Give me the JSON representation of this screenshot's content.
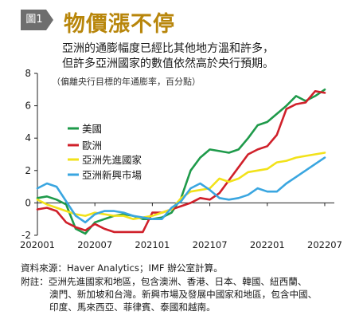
{
  "figure_label": "圖1",
  "title": "物價漲不停",
  "subtitle_lines": [
    "亞洲的通膨幅度已經比其他地方溫和許多，",
    "但許多亞洲國家的數值依然高於央行預期。"
  ],
  "source": "資料來源：Haver Analytics；IMF 辦公室計算。",
  "notes": [
    "附註：亞洲先進國家和地區，包含澳洲、香港、日本、韓國、紐西蘭、",
    "澳門、新加坡和台灣。新興市場及發展中國家和地區，包含中國、",
    "印度、馬來西亞、菲律賓、泰國和越南。"
  ],
  "chart_data": {
    "type": "line",
    "ylabel": "（偏離央行目標的年通膨率，百分點）",
    "x_ticks": [
      "202001",
      "202007",
      "202101",
      "202107",
      "202201",
      "202207"
    ],
    "ylim": [
      -2,
      8
    ],
    "y_ticks": [
      -2,
      0,
      2,
      4,
      6,
      8
    ],
    "legend_position": "left-middle",
    "x": [
      "202001",
      "202002",
      "202003",
      "202004",
      "202005",
      "202006",
      "202007",
      "202008",
      "202009",
      "202010",
      "202011",
      "202012",
      "202101",
      "202102",
      "202103",
      "202104",
      "202105",
      "202106",
      "202107",
      "202108",
      "202109",
      "202110",
      "202111",
      "202112",
      "202201",
      "202202",
      "202203",
      "202204",
      "202205",
      "202206",
      "202207",
      "202208"
    ],
    "series": [
      {
        "name": "美國",
        "color": "#1e9a4a",
        "values": [
          0.3,
          0.4,
          0.2,
          -0.1,
          -1.6,
          -1.9,
          -1.2,
          -1.0,
          -0.8,
          -0.7,
          -0.8,
          -1.0,
          -1.0,
          -0.9,
          -0.6,
          0.3,
          2.0,
          2.8,
          3.3,
          3.2,
          3.1,
          3.3,
          4.0,
          4.8,
          5.0,
          5.5,
          6.0,
          6.6,
          6.3,
          6.6,
          7.0,
          null
        ]
      },
      {
        "name": "歐洲",
        "color": "#d0202a",
        "values": [
          -0.4,
          -0.3,
          -0.5,
          -1.2,
          -1.5,
          -1.7,
          -1.3,
          -1.6,
          -1.8,
          -1.8,
          -1.8,
          -1.8,
          -0.6,
          -0.6,
          -0.4,
          -0.2,
          0.0,
          0.3,
          0.2,
          0.6,
          1.4,
          2.2,
          3.0,
          3.3,
          3.5,
          4.2,
          5.8,
          6.1,
          6.2,
          6.9,
          6.8,
          null
        ]
      },
      {
        "name": "亞洲先進國家",
        "color": "#f2e21a",
        "values": [
          0.2,
          -0.1,
          -0.3,
          -0.5,
          -0.7,
          -0.8,
          -0.6,
          -0.7,
          -0.8,
          -0.8,
          -1.0,
          -0.9,
          -0.8,
          -0.6,
          -0.4,
          0.3,
          0.7,
          0.8,
          0.9,
          1.5,
          1.3,
          1.5,
          1.9,
          2.0,
          2.1,
          2.5,
          2.6,
          2.8,
          2.9,
          3.0,
          3.1,
          null
        ]
      },
      {
        "name": "亞洲新興市場",
        "color": "#3aa6e0",
        "values": [
          0.9,
          1.2,
          1.0,
          0.1,
          -0.8,
          -1.2,
          -0.7,
          -0.5,
          -0.5,
          -0.6,
          -0.8,
          -0.9,
          -1.0,
          -1.0,
          -0.3,
          0.1,
          0.9,
          1.2,
          0.8,
          0.3,
          0.2,
          0.3,
          0.5,
          0.9,
          0.7,
          0.7,
          1.2,
          1.6,
          2.0,
          2.4,
          2.8,
          null
        ]
      }
    ]
  }
}
